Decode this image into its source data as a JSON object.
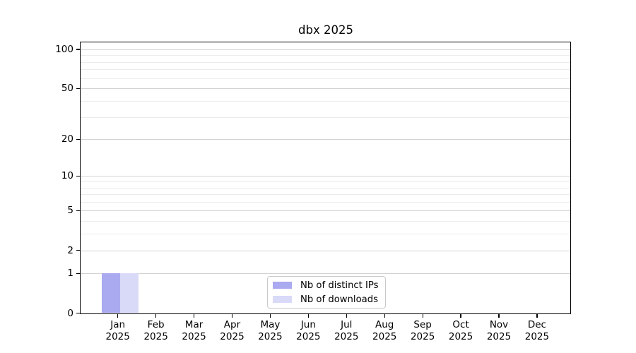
{
  "title": "dbx 2025",
  "chart_data": {
    "type": "bar",
    "title": "dbx 2025",
    "categories": [
      "Jan 2025",
      "Feb 2025",
      "Mar 2025",
      "Apr 2025",
      "May 2025",
      "Jun 2025",
      "Jul 2025",
      "Aug 2025",
      "Sep 2025",
      "Oct 2025",
      "Nov 2025",
      "Dec 2025"
    ],
    "series": [
      {
        "name": "Nb of distinct IPs",
        "color": "#aaaaf0",
        "values": [
          1,
          0,
          0,
          0,
          0,
          0,
          0,
          0,
          0,
          0,
          0,
          0
        ]
      },
      {
        "name": "Nb of downloads",
        "color": "#d9d9f8",
        "values": [
          1,
          0,
          0,
          0,
          0,
          0,
          0,
          0,
          0,
          0,
          0,
          0
        ]
      }
    ],
    "xlabel": "",
    "ylabel": "",
    "yscale": "log1p",
    "yticks": [
      0,
      1,
      2,
      5,
      10,
      20,
      50,
      100
    ],
    "minor_yticks": [
      3,
      4,
      6,
      7,
      8,
      9,
      30,
      40,
      60,
      70,
      80,
      90
    ],
    "ylim": [
      0,
      113
    ],
    "grid": true,
    "legend_position": "lower-center-inside"
  }
}
